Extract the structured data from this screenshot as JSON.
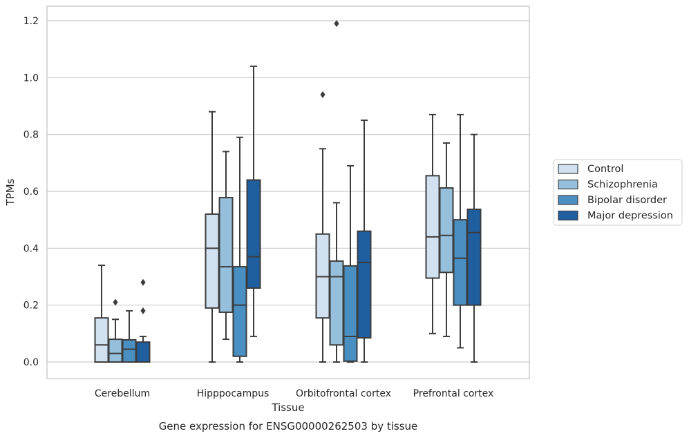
{
  "caption": "Gene expression for ENSG00000262503 by tissue",
  "colors": {
    "background": "#ffffff",
    "grid": "#cccccc",
    "frame": "#cccccc",
    "stroke": "#3c3c3c",
    "series": [
      "#d2e1f0",
      "#95bfdb",
      "#4a8fc1",
      "#1f5fa0"
    ]
  },
  "chart_data": {
    "type": "box",
    "xlabel": "Tissue",
    "ylabel": "TPMs",
    "ylim": [
      -0.06,
      1.25
    ],
    "yticks": [
      0.0,
      0.2,
      0.4,
      0.6,
      0.8,
      1.0,
      1.2
    ],
    "ytick_labels": [
      "0.0",
      "0.2",
      "0.4",
      "0.6",
      "0.8",
      "1.0",
      "1.2"
    ],
    "grid": "horizontal",
    "legend_position": "right-outside",
    "categories": [
      "Cerebellum",
      "Hipppocampus",
      "Orbitofrontal cortex",
      "Prefrontal cortex"
    ],
    "series": [
      {
        "name": "Control",
        "boxes": [
          {
            "whisker_low": 0.0,
            "q1": 0.0,
            "median": 0.06,
            "q3": 0.155,
            "whisker_high": 0.34,
            "outliers": []
          },
          {
            "whisker_low": 0.0,
            "q1": 0.19,
            "median": 0.4,
            "q3": 0.52,
            "whisker_high": 0.88,
            "outliers": []
          },
          {
            "whisker_low": 0.0,
            "q1": 0.155,
            "median": 0.3,
            "q3": 0.45,
            "whisker_high": 0.75,
            "outliers": [
              0.94
            ]
          },
          {
            "whisker_low": 0.1,
            "q1": 0.295,
            "median": 0.44,
            "q3": 0.655,
            "whisker_high": 0.87,
            "outliers": []
          }
        ]
      },
      {
        "name": "Schizophrenia",
        "boxes": [
          {
            "whisker_low": 0.0,
            "q1": 0.0,
            "median": 0.03,
            "q3": 0.08,
            "whisker_high": 0.15,
            "outliers": [
              0.21
            ]
          },
          {
            "whisker_low": 0.08,
            "q1": 0.175,
            "median": 0.335,
            "q3": 0.578,
            "whisker_high": 0.74,
            "outliers": []
          },
          {
            "whisker_low": 0.0,
            "q1": 0.06,
            "median": 0.3,
            "q3": 0.355,
            "whisker_high": 0.56,
            "outliers": [
              1.19
            ]
          },
          {
            "whisker_low": 0.09,
            "q1": 0.315,
            "median": 0.445,
            "q3": 0.612,
            "whisker_high": 0.77,
            "outliers": []
          }
        ]
      },
      {
        "name": "Bipolar disorder",
        "boxes": [
          {
            "whisker_low": 0.0,
            "q1": 0.0,
            "median": 0.045,
            "q3": 0.078,
            "whisker_high": 0.18,
            "outliers": []
          },
          {
            "whisker_low": 0.0,
            "q1": 0.02,
            "median": 0.2,
            "q3": 0.335,
            "whisker_high": 0.79,
            "outliers": []
          },
          {
            "whisker_low": 0.0,
            "q1": 0.003,
            "median": 0.09,
            "q3": 0.338,
            "whisker_high": 0.69,
            "outliers": []
          },
          {
            "whisker_low": 0.05,
            "q1": 0.2,
            "median": 0.365,
            "q3": 0.5,
            "whisker_high": 0.87,
            "outliers": []
          }
        ]
      },
      {
        "name": "Major depression",
        "boxes": [
          {
            "whisker_low": 0.0,
            "q1": 0.0,
            "median": 0.0,
            "q3": 0.07,
            "whisker_high": 0.09,
            "outliers": [
              0.18,
              0.28
            ]
          },
          {
            "whisker_low": 0.09,
            "q1": 0.26,
            "median": 0.37,
            "q3": 0.64,
            "whisker_high": 1.04,
            "outliers": []
          },
          {
            "whisker_low": 0.0,
            "q1": 0.085,
            "median": 0.35,
            "q3": 0.46,
            "whisker_high": 0.85,
            "outliers": []
          },
          {
            "whisker_low": 0.0,
            "q1": 0.2,
            "median": 0.455,
            "q3": 0.537,
            "whisker_high": 0.8,
            "outliers": []
          }
        ]
      }
    ]
  }
}
